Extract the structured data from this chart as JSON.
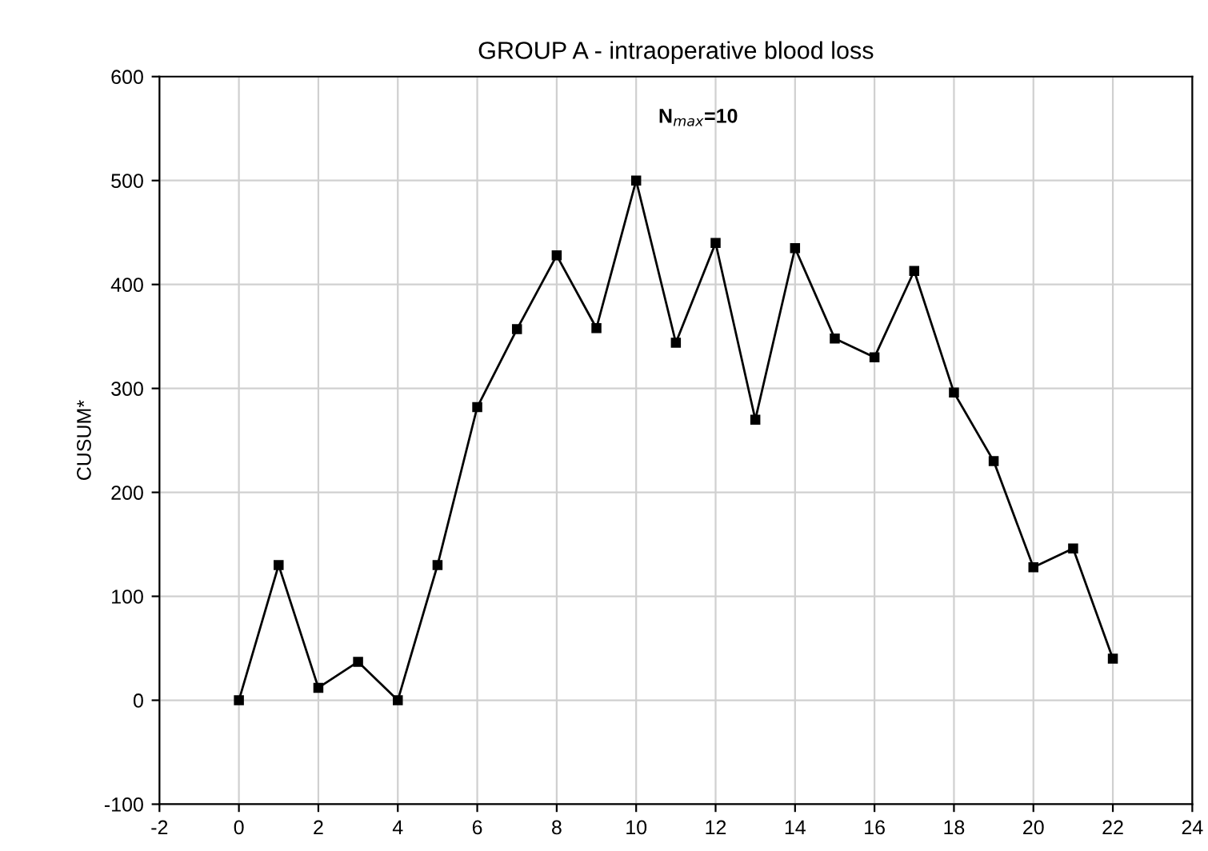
{
  "chart_data": {
    "type": "line",
    "title": "GROUP A - intraoperative blood loss",
    "ylabel": "CUSUM*",
    "x": [
      0,
      1,
      2,
      3,
      4,
      5,
      6,
      7,
      8,
      9,
      10,
      11,
      12,
      13,
      14,
      15,
      16,
      17,
      18,
      19,
      20,
      21,
      22
    ],
    "values": [
      0,
      130,
      12,
      37,
      0,
      130,
      282,
      357,
      428,
      358,
      500,
      344,
      440,
      270,
      435,
      348,
      330,
      413,
      296,
      230,
      128,
      146,
      40
    ],
    "color": "#000000",
    "marker": "square",
    "line_style": "solid",
    "xlim": [
      -2,
      24
    ],
    "xticks": [
      -2,
      0,
      2,
      4,
      6,
      8,
      10,
      12,
      14,
      16,
      18,
      20,
      22,
      24
    ],
    "ylim": [
      -100,
      600
    ],
    "yticks": [
      -100,
      0,
      100,
      200,
      300,
      400,
      500,
      600
    ],
    "grid": true,
    "annotations": [
      {
        "text": "N$_{max}$=10",
        "x": 10,
        "y": 500
      }
    ]
  }
}
